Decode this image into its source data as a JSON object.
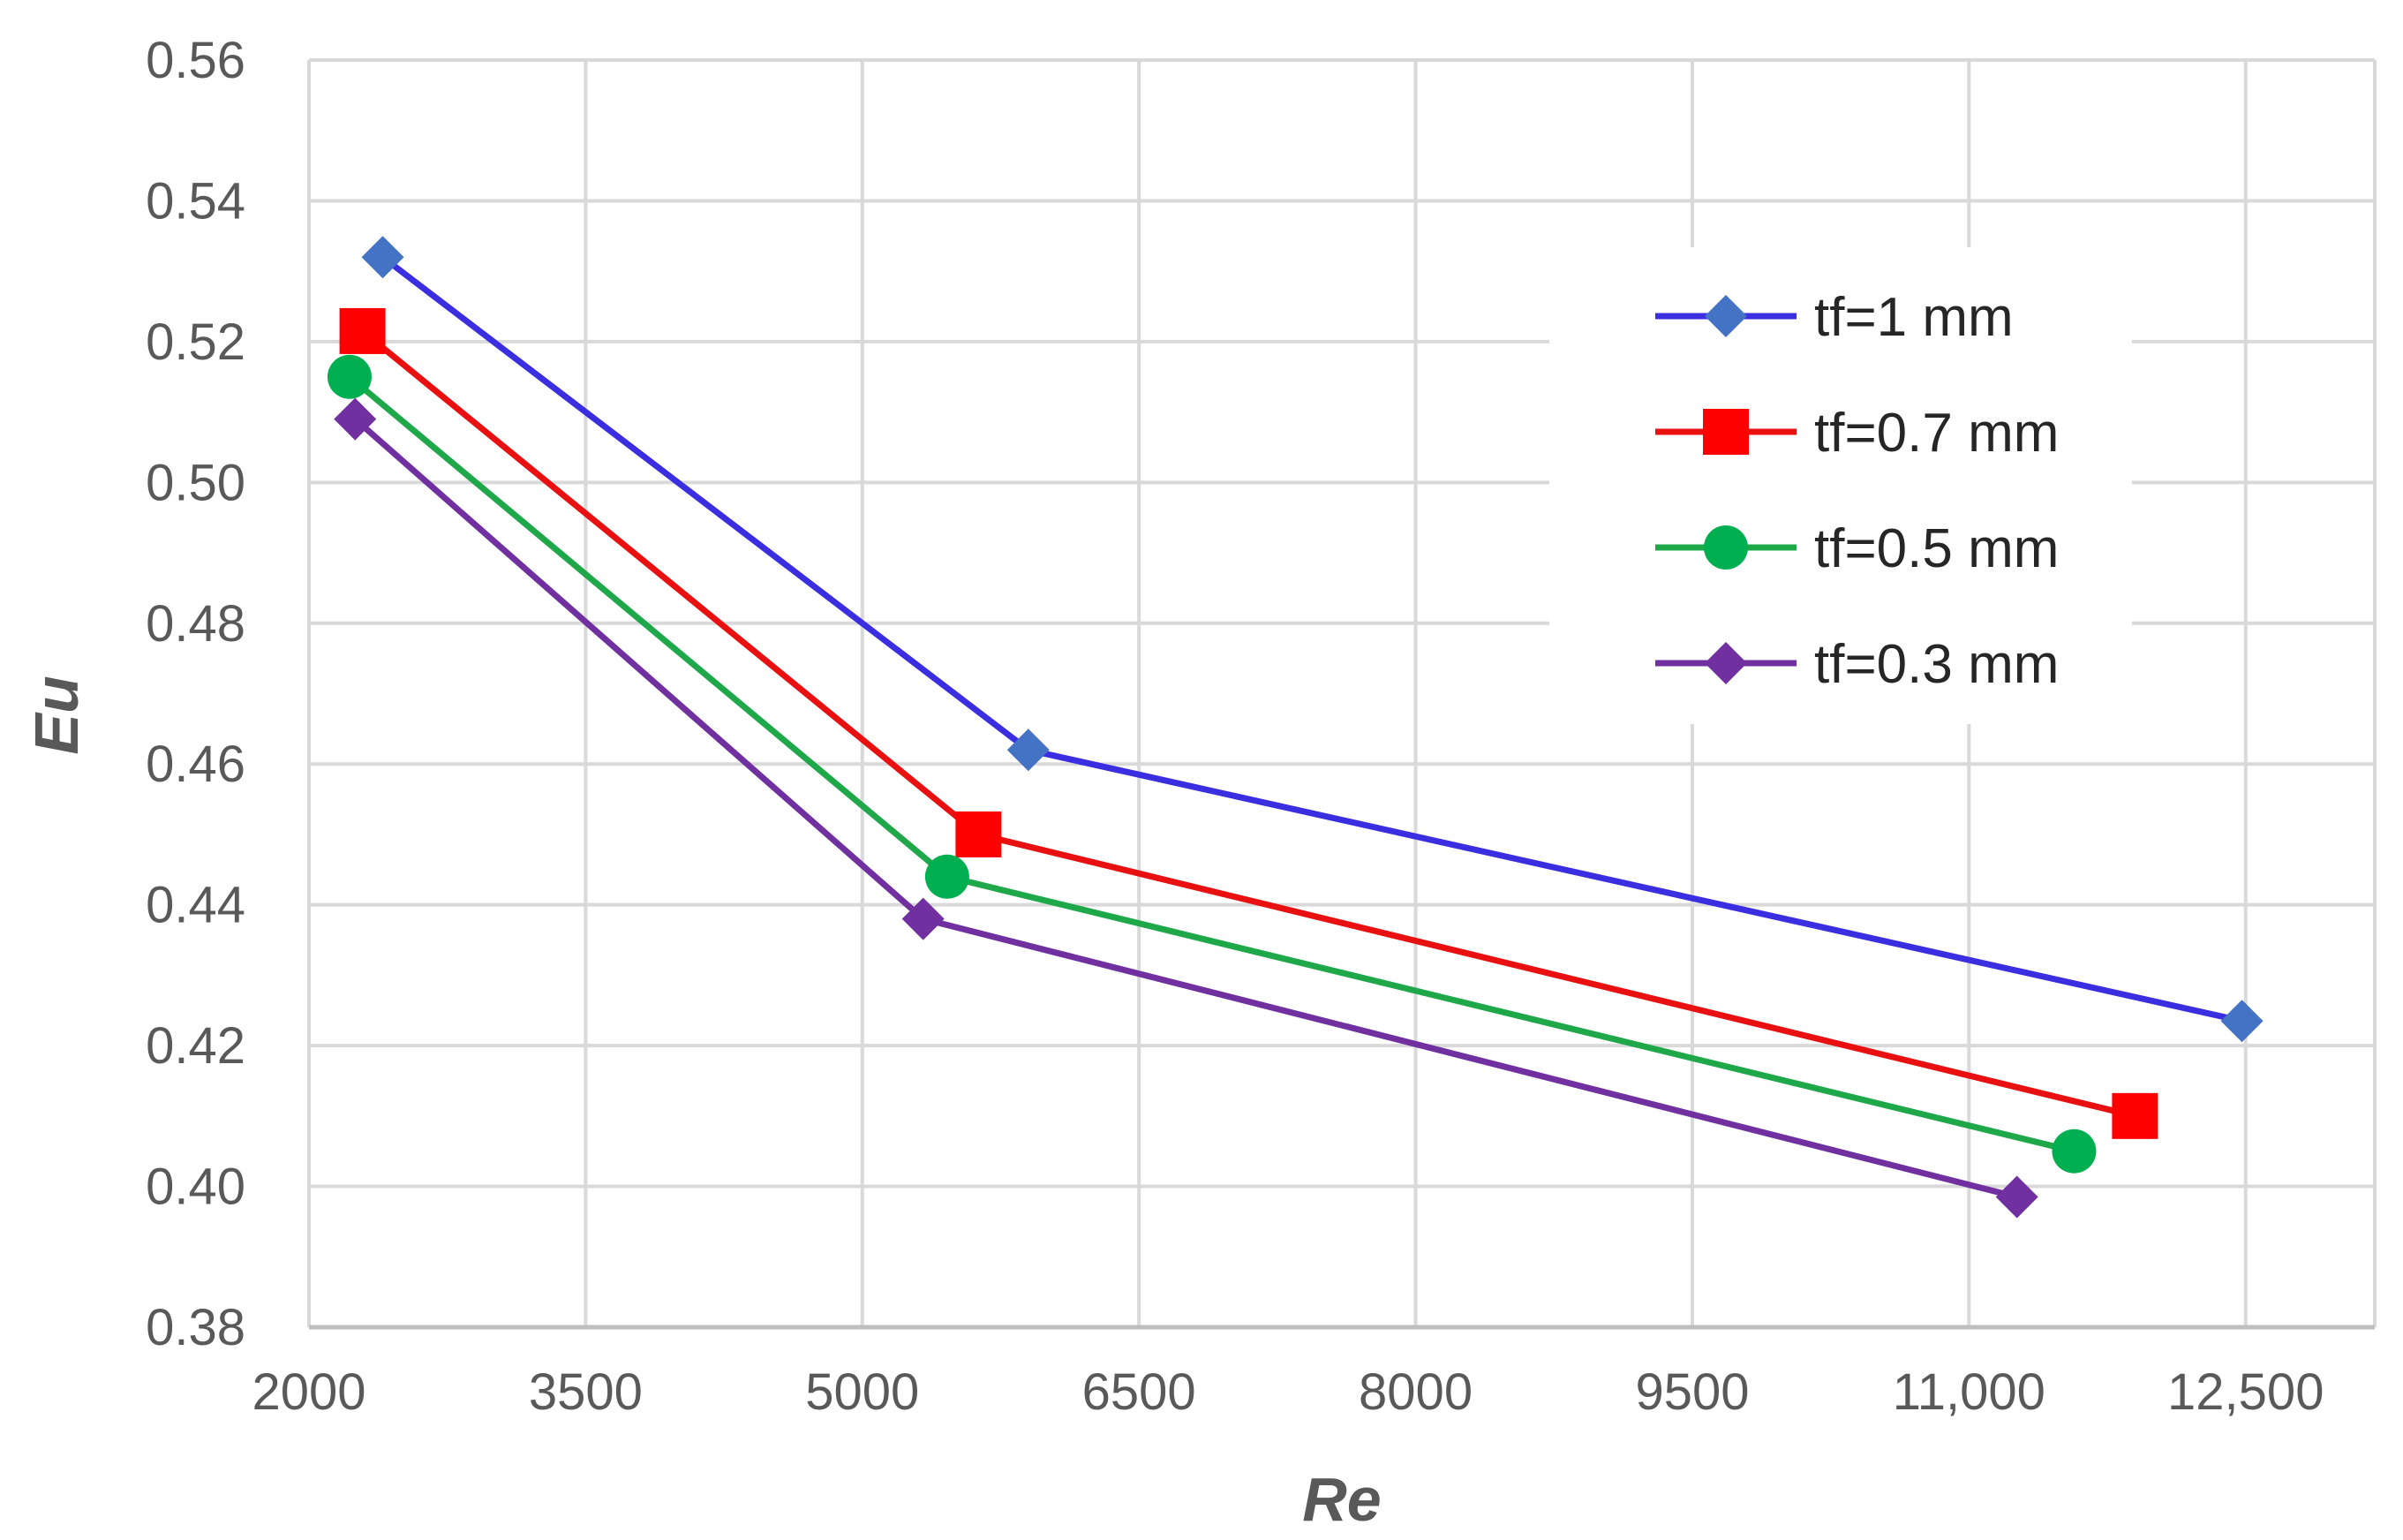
{
  "chart_data": {
    "type": "line",
    "title": "",
    "xlabel": "Re",
    "ylabel": "Eu",
    "xlim": [
      2000,
      13200
    ],
    "ylim": [
      0.38,
      0.56
    ],
    "x_ticks": [
      {
        "value": 2000,
        "label": "2000"
      },
      {
        "value": 3500,
        "label": "3500"
      },
      {
        "value": 5000,
        "label": "5000"
      },
      {
        "value": 6500,
        "label": "6500"
      },
      {
        "value": 8000,
        "label": "8000"
      },
      {
        "value": 9500,
        "label": "9500"
      },
      {
        "value": 11000,
        "label": "11,000"
      },
      {
        "value": 12500,
        "label": "12,500"
      }
    ],
    "y_ticks": [
      {
        "value": 0.38,
        "label": "0.38"
      },
      {
        "value": 0.4,
        "label": "0.40"
      },
      {
        "value": 0.42,
        "label": "0.42"
      },
      {
        "value": 0.44,
        "label": "0.44"
      },
      {
        "value": 0.46,
        "label": "0.46"
      },
      {
        "value": 0.48,
        "label": "0.48"
      },
      {
        "value": 0.5,
        "label": "0.50"
      },
      {
        "value": 0.52,
        "label": "0.52"
      },
      {
        "value": 0.54,
        "label": "0.54"
      },
      {
        "value": 0.56,
        "label": "0.56"
      }
    ],
    "grid": true,
    "legend_position": "top-right",
    "series": [
      {
        "name": "tf=1 mm",
        "color": "#3a2ee0",
        "marker_color": "#4472c4",
        "marker": "diamond",
        "x": [
          2400,
          5900,
          12480
        ],
        "y": [
          0.532,
          0.462,
          0.4235
        ]
      },
      {
        "name": "tf=0.7 mm",
        "color": "#e81010",
        "marker_color": "#ff0000",
        "marker": "square",
        "x": [
          2290,
          5630,
          11900
        ],
        "y": [
          0.5215,
          0.45,
          0.41
        ]
      },
      {
        "name": "tf=0.5 mm",
        "color": "#1fa84a",
        "marker_color": "#00b050",
        "marker": "circle",
        "x": [
          2220,
          5460,
          11570
        ],
        "y": [
          0.515,
          0.444,
          0.405
        ]
      },
      {
        "name": "tf=0.3 mm",
        "color": "#7030a0",
        "marker_color": "#7030a0",
        "marker": "diamond",
        "x": [
          2250,
          5330,
          11260
        ],
        "y": [
          0.509,
          0.438,
          0.3985
        ]
      }
    ]
  }
}
